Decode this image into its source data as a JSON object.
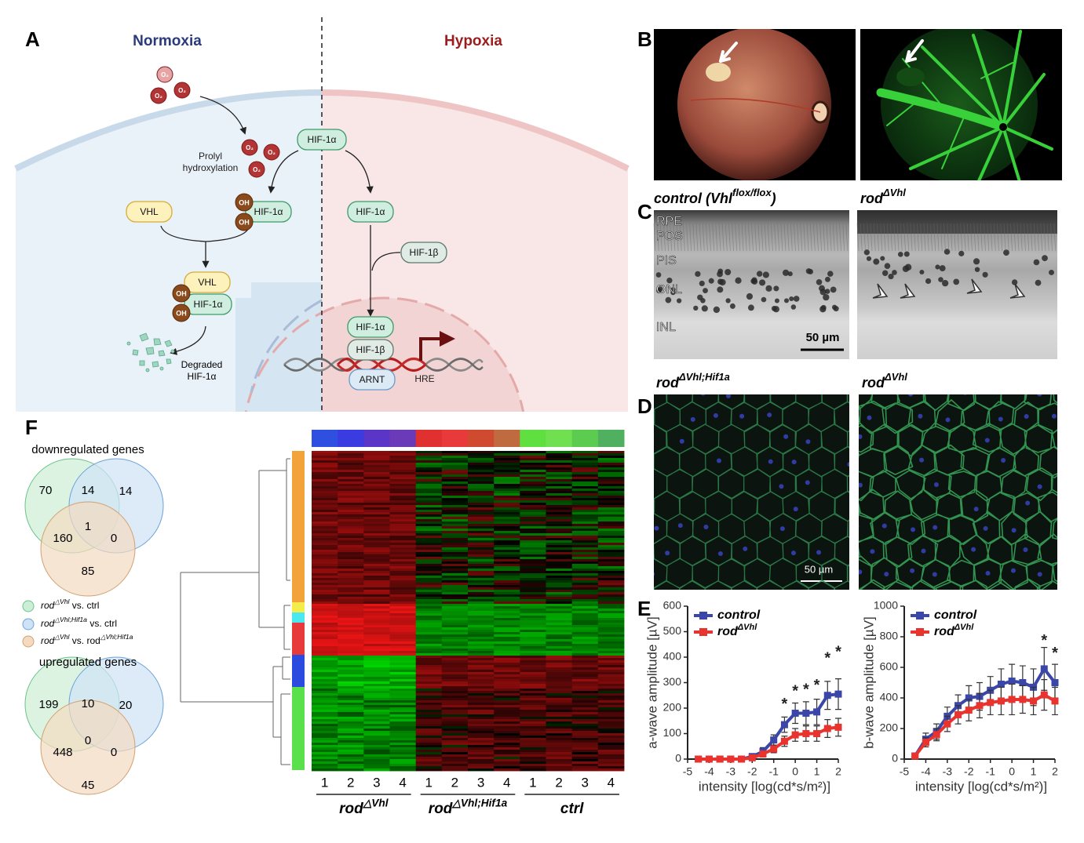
{
  "figure": {
    "panel_labels": [
      "A",
      "B",
      "C",
      "D",
      "E",
      "F"
    ],
    "panel_a": {
      "left_title": "Normoxia",
      "right_title": "Hypoxia",
      "oxygen": [
        "O₂",
        "O₂",
        "O₂",
        "O₂",
        "O₂",
        "O₂"
      ],
      "prolyl": [
        "Prolyl",
        "hydroxylation"
      ],
      "nodes": [
        "HIF-1α",
        "VHL",
        "HIF-1α",
        "OH",
        "OH",
        "HIF-1α",
        "HIF-1β",
        "VHL",
        "HIF-1α",
        "OH",
        "OH",
        "HIF-1α",
        "HIF-1β",
        "ARNT"
      ],
      "degraded": [
        "Degraded",
        "HIF-1α"
      ],
      "hre": "HRE"
    },
    "panel_c": {
      "titles": [
        {
          "base": "control (Vhl",
          "sup": "flox/flox",
          "rest": ")"
        },
        {
          "base": "rod",
          "sup": "ΔVhl"
        }
      ],
      "layers": [
        "RPE",
        "POS",
        "PIS",
        "ONL",
        "INL"
      ],
      "scale": "50 µm"
    },
    "panel_d": {
      "titles": [
        {
          "base": "rod",
          "sup": "ΔVhl;Hif1a"
        },
        {
          "base": "rod",
          "sup": "ΔVhl"
        }
      ],
      "scale": "50 µm"
    },
    "panel_f": {
      "venn": [
        {
          "title": "downregulated genes",
          "counts": [
            70,
            14,
            14,
            1,
            160,
            0,
            85
          ]
        },
        {
          "title": "upregulated genes",
          "counts": [
            199,
            10,
            20,
            0,
            448,
            0,
            45
          ]
        }
      ],
      "legend": [
        {
          "base": "rod",
          "sup": "△Vhl",
          "rest": " vs. ctrl"
        },
        {
          "base": "rod",
          "sup": "△Vhl;Hif1a",
          "rest": " vs. ctrl"
        },
        {
          "base": "rod",
          "sup": "△Vhl",
          "rest": " vs. rod",
          "sup2": "△Vhl;Hif1a"
        }
      ],
      "columns": [
        "1",
        "2",
        "3",
        "4",
        "1",
        "2",
        "3",
        "4",
        "1",
        "2",
        "3",
        "4"
      ],
      "groups": [
        {
          "base": "rod",
          "sup": "△Vhl"
        },
        {
          "base": "rod",
          "sup": "△Vhl;Hif1a"
        },
        {
          "base": "ctrl"
        }
      ]
    }
  },
  "chart_data": [
    {
      "type": "line",
      "ylabel": "a-wave amplitude [µV]",
      "xlabel": "intensity [log(cd*s/m²)]",
      "x": [
        -4.5,
        -4,
        -3.5,
        -3,
        -2.5,
        -2,
        -1.5,
        -1,
        -0.5,
        0,
        0.5,
        1,
        1.5,
        2
      ],
      "xlim": [
        -5,
        2
      ],
      "xticks": [
        -5,
        -4,
        -3,
        -2,
        -1,
        0,
        1,
        2
      ],
      "ylim": [
        0,
        600
      ],
      "yticks": [
        0,
        100,
        200,
        300,
        400,
        500,
        600
      ],
      "legend": "upper left",
      "series": [
        {
          "name": "control",
          "color": "#3a46a8",
          "values": [
            0,
            0,
            0,
            0,
            0,
            10,
            30,
            75,
            135,
            180,
            180,
            185,
            250,
            255
          ],
          "errors": [
            5,
            5,
            5,
            5,
            5,
            10,
            15,
            20,
            30,
            40,
            45,
            50,
            55,
            60
          ]
        },
        {
          "name": "rod",
          "name_superscript": "ΔVhl",
          "color": "#e8332f",
          "values": [
            0,
            0,
            0,
            0,
            0,
            5,
            20,
            40,
            70,
            95,
            100,
            100,
            120,
            125
          ],
          "errors": [
            5,
            5,
            5,
            5,
            5,
            5,
            10,
            15,
            20,
            25,
            30,
            30,
            35,
            35
          ]
        }
      ],
      "annotations": [
        {
          "x": -0.5,
          "y": 225,
          "text": "*"
        },
        {
          "x": 0,
          "y": 277,
          "text": "*"
        },
        {
          "x": 0.5,
          "y": 283,
          "text": "*"
        },
        {
          "x": 1,
          "y": 300,
          "text": "*"
        },
        {
          "x": 1.5,
          "y": 406,
          "text": "*"
        },
        {
          "x": 2,
          "y": 430,
          "text": "*"
        }
      ]
    },
    {
      "type": "line",
      "ylabel": "b-wave amplitude [µV]",
      "xlabel": "intensity [log(cd*s/m²)]",
      "x": [
        -4.5,
        -4,
        -3.5,
        -3,
        -2.5,
        -2,
        -1.5,
        -1,
        -0.5,
        0,
        0.5,
        1,
        1.5,
        2
      ],
      "xlim": [
        -5,
        2
      ],
      "xticks": [
        -5,
        -4,
        -3,
        -2,
        -1,
        0,
        1,
        2
      ],
      "ylim": [
        0,
        1000
      ],
      "yticks": [
        0,
        200,
        400,
        600,
        800,
        1000
      ],
      "legend": "upper left",
      "series": [
        {
          "name": "control",
          "color": "#3a46a8",
          "values": [
            20,
            130,
            180,
            280,
            350,
            400,
            410,
            450,
            490,
            510,
            500,
            470,
            590,
            500
          ],
          "errors": [
            20,
            40,
            50,
            60,
            70,
            80,
            90,
            90,
            100,
            110,
            110,
            120,
            140,
            120
          ]
        },
        {
          "name": "rod",
          "name_superscript": "ΔVhl",
          "color": "#e8332f",
          "values": [
            20,
            110,
            160,
            230,
            290,
            320,
            350,
            370,
            380,
            390,
            390,
            380,
            420,
            380
          ],
          "errors": [
            20,
            30,
            40,
            50,
            60,
            70,
            80,
            80,
            90,
            100,
            90,
            90,
            100,
            90
          ]
        }
      ],
      "annotations": [
        {
          "x": 1.5,
          "y": 790,
          "text": "*"
        },
        {
          "x": 2,
          "y": 708,
          "text": "*"
        }
      ]
    }
  ]
}
